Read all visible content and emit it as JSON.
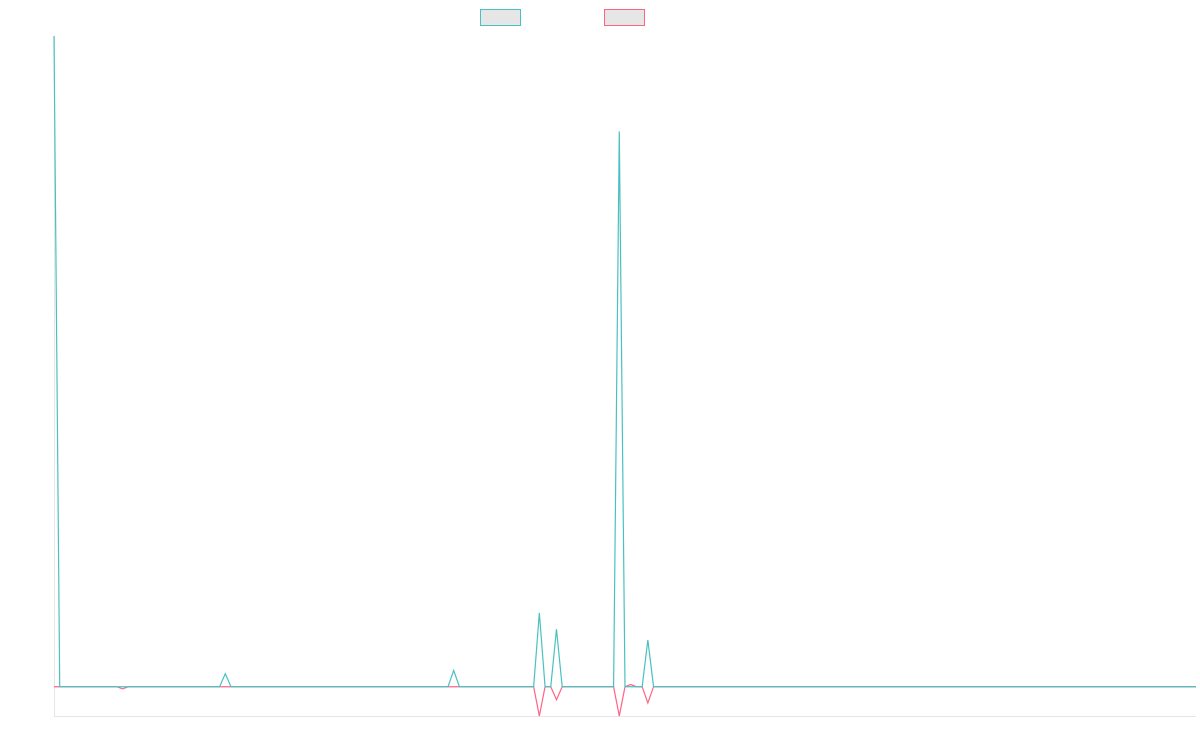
{
  "chart_data": {
    "type": "line",
    "x": [
      0,
      1,
      2,
      3,
      4,
      5,
      6,
      7,
      8,
      9,
      10,
      11,
      12,
      13,
      14,
      15,
      16,
      17,
      18,
      19,
      20,
      21,
      22,
      23,
      24,
      25,
      26,
      27,
      28,
      29,
      30,
      31,
      32,
      33,
      34,
      35,
      36,
      37,
      38,
      39,
      40,
      41,
      42,
      43,
      44,
      45,
      46,
      47,
      48,
      49,
      50,
      51,
      52,
      53,
      54,
      55,
      56,
      57,
      58,
      59,
      60,
      61,
      62,
      63,
      64,
      65,
      66,
      67,
      68,
      69,
      70,
      71,
      72,
      73,
      74,
      75,
      76,
      77,
      78,
      79,
      80,
      81,
      82,
      83,
      84,
      85,
      86,
      87,
      88,
      89,
      90,
      91,
      92,
      93,
      94,
      95,
      96,
      97,
      98,
      99,
      100,
      101,
      102,
      103,
      104,
      105,
      106,
      107,
      108,
      109,
      110,
      111,
      112,
      113,
      114,
      115,
      116,
      117,
      118,
      119,
      120,
      121,
      122,
      123,
      124,
      125,
      126,
      127,
      128,
      129,
      130,
      131,
      132,
      133,
      134,
      135,
      136,
      137,
      138,
      139,
      140,
      141,
      142,
      143,
      144,
      145,
      146,
      147,
      148,
      149,
      150,
      151,
      152,
      153,
      154,
      155,
      156,
      157,
      158,
      159,
      160,
      161,
      162,
      163,
      164,
      165,
      166,
      167,
      168,
      169,
      170,
      171,
      172,
      173,
      174,
      175,
      176,
      177,
      178,
      179,
      180,
      181,
      182,
      183,
      184,
      185,
      186,
      187,
      188,
      189,
      190,
      191,
      192,
      193,
      194,
      195,
      196,
      197,
      198,
      199,
      200
    ],
    "series": [
      {
        "color": "#4bc0c0",
        "values": [
          600,
          0,
          0,
          0,
          0,
          0,
          0,
          0,
          0,
          0,
          0,
          0,
          0,
          0,
          0,
          0,
          0,
          0,
          0,
          0,
          0,
          0,
          0,
          0,
          0,
          0,
          0,
          0,
          0,
          0,
          12,
          0,
          0,
          0,
          0,
          0,
          0,
          0,
          0,
          0,
          0,
          0,
          0,
          0,
          0,
          0,
          0,
          0,
          0,
          0,
          0,
          0,
          0,
          0,
          0,
          0,
          0,
          0,
          0,
          0,
          0,
          0,
          0,
          0,
          0,
          0,
          0,
          0,
          0,
          0,
          15,
          0,
          0,
          0,
          0,
          0,
          0,
          0,
          0,
          0,
          0,
          0,
          0,
          0,
          0,
          68,
          0,
          0,
          53,
          0,
          0,
          0,
          0,
          0,
          0,
          0,
          0,
          0,
          0,
          512,
          0,
          0,
          0,
          0,
          43,
          0,
          0,
          0,
          0,
          0,
          0,
          0,
          0,
          0,
          0,
          0,
          0,
          0,
          0,
          0,
          0,
          0,
          0,
          0,
          0,
          0,
          0,
          0,
          0,
          0,
          0,
          0,
          0,
          0,
          0,
          0,
          0,
          0,
          0,
          0,
          0,
          0,
          0,
          0,
          0,
          0,
          0,
          0,
          0,
          0,
          0,
          0,
          0,
          0,
          0,
          0,
          0,
          0,
          0,
          0,
          0,
          0,
          0,
          0,
          0,
          0,
          0,
          0,
          0,
          0,
          0,
          0,
          0,
          0,
          0,
          0,
          0,
          0,
          0,
          0,
          0,
          0,
          0,
          0,
          0,
          0,
          0,
          0,
          0,
          0,
          0,
          0,
          0,
          0,
          0,
          0,
          0,
          0,
          0,
          0,
          0
        ]
      },
      {
        "color": "#ff6384",
        "values": [
          0,
          0,
          0,
          0,
          0,
          0,
          0,
          0,
          0,
          0,
          0,
          0,
          -2,
          0,
          0,
          0,
          0,
          0,
          0,
          0,
          0,
          0,
          0,
          0,
          0,
          0,
          0,
          0,
          0,
          0,
          0,
          0,
          0,
          0,
          0,
          0,
          0,
          0,
          0,
          0,
          0,
          0,
          0,
          0,
          0,
          0,
          0,
          0,
          0,
          0,
          0,
          0,
          0,
          0,
          0,
          0,
          0,
          0,
          0,
          0,
          0,
          0,
          0,
          0,
          0,
          0,
          0,
          0,
          0,
          0,
          0,
          0,
          0,
          0,
          0,
          0,
          0,
          0,
          0,
          0,
          0,
          0,
          0,
          0,
          0,
          -27,
          0,
          0,
          -12,
          0,
          0,
          0,
          0,
          0,
          0,
          0,
          0,
          0,
          0,
          -27,
          0,
          2,
          0,
          0,
          -15,
          0,
          0,
          0,
          0,
          0,
          0,
          0,
          0,
          0,
          0,
          0,
          0,
          0,
          0,
          0,
          0,
          0,
          0,
          0,
          0,
          0,
          0,
          0,
          0,
          0,
          0,
          0,
          0,
          0,
          0,
          0,
          0,
          0,
          0,
          0,
          0,
          0,
          0,
          0,
          0,
          0,
          0,
          0,
          0,
          0,
          0,
          0,
          0,
          0,
          0,
          0,
          0,
          0,
          0,
          0,
          0,
          0,
          0,
          0,
          0,
          0,
          0,
          0,
          0,
          0,
          0,
          0,
          0,
          0,
          0,
          0,
          0,
          0,
          0,
          0,
          0,
          0,
          0,
          0,
          0,
          0,
          0,
          0,
          0,
          0,
          0,
          0,
          0,
          0,
          0,
          0,
          0,
          0,
          0,
          0,
          0
        ]
      }
    ],
    "xlim": [
      0,
      200
    ],
    "ylim": [
      -27,
      600
    ],
    "grid": false,
    "legend": "top-center",
    "title": "",
    "xlabel": "",
    "ylabel": ""
  }
}
